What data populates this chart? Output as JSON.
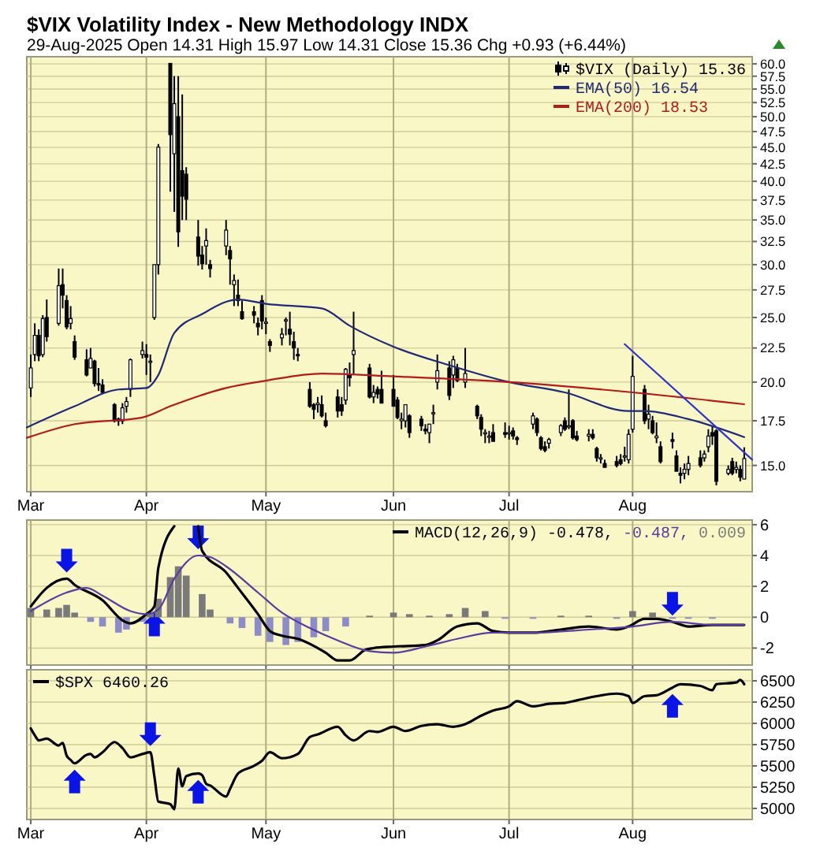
{
  "chart_data": [
    {
      "type": "candlestick",
      "title": "$VIX Volatility Index - New Methodology INDX",
      "subtitle": "29-Aug-2025   Open 14.31  High 15.97  Low 14.31  Close 15.36  Chg +0.93 (+6.44%)",
      "log": true,
      "grid": true,
      "legend": "top right",
      "xlim": [
        "2025-03-02",
        "2025-08-31"
      ],
      "xticks": [
        {
          "value": "2025-03-03",
          "label": "Mar"
        },
        {
          "value": "2025-04-01",
          "label": "Apr"
        },
        {
          "value": "2025-05-01",
          "label": "May"
        },
        {
          "value": "2025-06-02",
          "label": "Jun"
        },
        {
          "value": "2025-07-01",
          "label": "Jul"
        },
        {
          "value": "2025-08-01",
          "label": "Aug"
        }
      ],
      "ylim": [
        13.7,
        61.5
      ],
      "yticks": [
        {
          "value": 15,
          "label": "15.0"
        },
        {
          "value": 17.5,
          "label": "17.5"
        },
        {
          "value": 20,
          "label": "20.0"
        },
        {
          "value": 22.5,
          "label": "22.5"
        },
        {
          "value": 25,
          "label": "25.0"
        },
        {
          "value": 27.5,
          "label": "27.5"
        },
        {
          "value": 30,
          "label": "30.0"
        },
        {
          "value": 32.5,
          "label": "32.5"
        },
        {
          "value": 35,
          "label": "35.0"
        },
        {
          "value": 37.5,
          "label": "37.5"
        },
        {
          "value": 40,
          "label": "40.0"
        },
        {
          "value": 42.5,
          "label": "42.5"
        },
        {
          "value": 45,
          "label": "45.0"
        },
        {
          "value": 47.5,
          "label": "47.5"
        },
        {
          "value": 50,
          "label": "50.0"
        },
        {
          "value": 52.5,
          "label": "52.5"
        },
        {
          "value": 55,
          "label": "55.0"
        },
        {
          "value": 57.5,
          "label": "57.5"
        },
        {
          "value": 60,
          "label": "60.0"
        }
      ],
      "series": [
        {
          "name": "$VIX (Daily) 15.36",
          "color": "#000000",
          "x": [
            "2025-03-03",
            "2025-03-04",
            "2025-03-05",
            "2025-03-06",
            "2025-03-07",
            "2025-03-10",
            "2025-03-11",
            "2025-03-12",
            "2025-03-13",
            "2025-03-14",
            "2025-03-17",
            "2025-03-18",
            "2025-03-19",
            "2025-03-20",
            "2025-03-21",
            "2025-03-24",
            "2025-03-25",
            "2025-03-26",
            "2025-03-27",
            "2025-03-28",
            "2025-03-31",
            "2025-04-01",
            "2025-04-02",
            "2025-04-03",
            "2025-04-04",
            "2025-04-07",
            "2025-04-08",
            "2025-04-09",
            "2025-04-10",
            "2025-04-11",
            "2025-04-14",
            "2025-04-15",
            "2025-04-16",
            "2025-04-17",
            "2025-04-21",
            "2025-04-22",
            "2025-04-23",
            "2025-04-24",
            "2025-04-25",
            "2025-04-28",
            "2025-04-29",
            "2025-04-30",
            "2025-05-01",
            "2025-05-02",
            "2025-05-05",
            "2025-05-06",
            "2025-05-07",
            "2025-05-08",
            "2025-05-09",
            "2025-05-12",
            "2025-05-13",
            "2025-05-14",
            "2025-05-15",
            "2025-05-16",
            "2025-05-19",
            "2025-05-20",
            "2025-05-21",
            "2025-05-22",
            "2025-05-23",
            "2025-05-27",
            "2025-05-28",
            "2025-05-29",
            "2025-05-30",
            "2025-06-02",
            "2025-06-03",
            "2025-06-04",
            "2025-06-05",
            "2025-06-06",
            "2025-06-09",
            "2025-06-10",
            "2025-06-11",
            "2025-06-12",
            "2025-06-13",
            "2025-06-16",
            "2025-06-17",
            "2025-06-18",
            "2025-06-20",
            "2025-06-23",
            "2025-06-24",
            "2025-06-25",
            "2025-06-26",
            "2025-06-27",
            "2025-06-30",
            "2025-07-01",
            "2025-07-02",
            "2025-07-03",
            "2025-07-07",
            "2025-07-08",
            "2025-07-09",
            "2025-07-10",
            "2025-07-11",
            "2025-07-14",
            "2025-07-15",
            "2025-07-16",
            "2025-07-17",
            "2025-07-18",
            "2025-07-21",
            "2025-07-22",
            "2025-07-23",
            "2025-07-24",
            "2025-07-25",
            "2025-07-28",
            "2025-07-29",
            "2025-07-30",
            "2025-07-31",
            "2025-08-01",
            "2025-08-04",
            "2025-08-05",
            "2025-08-06",
            "2025-08-07",
            "2025-08-08",
            "2025-08-11",
            "2025-08-12",
            "2025-08-13",
            "2025-08-14",
            "2025-08-15",
            "2025-08-18",
            "2025-08-19",
            "2025-08-20",
            "2025-08-21",
            "2025-08-22",
            "2025-08-25",
            "2025-08-26",
            "2025-08-27",
            "2025-08-28",
            "2025-08-29"
          ],
          "ohlc": [
            [
              19.6,
              22.0,
              19.0,
              21.0
            ],
            [
              22.0,
              24.5,
              21.5,
              23.5
            ],
            [
              23.5,
              24.0,
              21.5,
              21.9
            ],
            [
              22.0,
              25.2,
              21.8,
              24.9
            ],
            [
              25.0,
              26.6,
              23.0,
              23.4
            ],
            [
              24.5,
              29.6,
              24.3,
              27.9
            ],
            [
              28.0,
              29.6,
              25.8,
              27.0
            ],
            [
              26.5,
              27.0,
              24.0,
              24.2
            ],
            [
              24.5,
              26.0,
              24.0,
              24.9
            ],
            [
              23.0,
              23.5,
              21.6,
              21.8
            ],
            [
              21.6,
              22.4,
              20.4,
              20.5
            ],
            [
              21.0,
              22.5,
              21.0,
              21.7
            ],
            [
              21.5,
              21.6,
              19.7,
              19.9
            ],
            [
              19.9,
              21.0,
              19.4,
              19.8
            ],
            [
              19.8,
              20.2,
              19.2,
              19.3
            ],
            [
              18.5,
              18.6,
              17.4,
              17.5
            ],
            [
              17.6,
              17.7,
              17.2,
              17.5
            ],
            [
              17.5,
              18.6,
              17.3,
              18.3
            ],
            [
              18.4,
              19.0,
              18.0,
              18.7
            ],
            [
              19.5,
              21.7,
              19.0,
              21.6
            ],
            [
              22.0,
              23.0,
              21.7,
              22.3
            ],
            [
              22.0,
              22.8,
              20.5,
              21.8
            ],
            [
              21.5,
              22.0,
              20.0,
              21.5
            ],
            [
              25.0,
              30.0,
              24.8,
              30.0
            ],
            [
              30.0,
              45.5,
              29.0,
              45.0
            ],
            [
              60.1,
              60.1,
              38.6,
              47.0
            ],
            [
              44.0,
              57.5,
              36.0,
              52.3
            ],
            [
              50.0,
              57.5,
              31.9,
              33.6
            ],
            [
              41.5,
              54.0,
              35.0,
              38.0
            ],
            [
              41.0,
              42.0,
              35.0,
              37.6
            ],
            [
              33.0,
              35.0,
              29.9,
              30.9
            ],
            [
              31.0,
              32.0,
              29.5,
              30.1
            ],
            [
              32.0,
              34.0,
              30.0,
              32.6
            ],
            [
              30.0,
              30.5,
              28.7,
              29.6
            ],
            [
              32.0,
              35.0,
              31.0,
              33.8
            ],
            [
              31.5,
              32.0,
              28.0,
              30.6
            ],
            [
              28.0,
              29.0,
              26.0,
              28.4
            ],
            [
              27.0,
              28.5,
              26.0,
              26.5
            ],
            [
              25.5,
              26.5,
              24.8,
              24.9
            ],
            [
              25.5,
              26.0,
              24.5,
              25.2
            ],
            [
              24.5,
              25.0,
              23.5,
              24.2
            ],
            [
              26.5,
              27.0,
              24.0,
              24.7
            ],
            [
              24.5,
              25.0,
              23.6,
              24.6
            ],
            [
              23.0,
              23.2,
              22.2,
              22.7
            ],
            [
              23.3,
              24.1,
              22.7,
              23.6
            ],
            [
              24.7,
              25.0,
              23.5,
              24.8
            ],
            [
              24.0,
              25.5,
              22.7,
              23.6
            ],
            [
              23.0,
              23.8,
              21.6,
              22.5
            ],
            [
              22.0,
              22.5,
              21.5,
              21.9
            ],
            [
              19.5,
              20.0,
              18.3,
              18.4
            ],
            [
              18.5,
              18.6,
              17.6,
              18.2
            ],
            [
              18.5,
              19.0,
              18.0,
              18.6
            ],
            [
              18.5,
              19.1,
              17.7,
              17.8
            ],
            [
              17.5,
              18.0,
              17.1,
              17.2
            ],
            [
              19.0,
              19.5,
              17.7,
              18.1
            ],
            [
              18.5,
              19.0,
              17.8,
              18.1
            ],
            [
              18.8,
              21.0,
              18.5,
              20.9
            ],
            [
              20.5,
              21.4,
              19.7,
              20.3
            ],
            [
              22.0,
              25.5,
              20.5,
              22.3
            ],
            [
              21.0,
              21.3,
              18.9,
              19.0
            ],
            [
              19.0,
              19.8,
              18.6,
              19.3
            ],
            [
              19.5,
              19.7,
              18.9,
              19.2
            ],
            [
              19.5,
              20.8,
              18.6,
              18.6
            ],
            [
              19.5,
              20.5,
              18.4,
              18.4
            ],
            [
              18.8,
              19.0,
              17.6,
              17.7
            ],
            [
              17.5,
              18.0,
              17.0,
              17.6
            ],
            [
              17.5,
              18.5,
              17.1,
              18.5
            ],
            [
              17.8,
              17.9,
              16.5,
              16.8
            ],
            [
              17.6,
              17.8,
              16.9,
              17.2
            ],
            [
              17.0,
              17.3,
              16.7,
              16.9
            ],
            [
              16.8,
              17.3,
              16.2,
              17.3
            ],
            [
              18.0,
              18.5,
              17.3,
              18.0
            ],
            [
              20.0,
              22.0,
              19.5,
              20.8
            ],
            [
              21.0,
              21.5,
              18.8,
              19.1
            ],
            [
              20.5,
              21.9,
              19.6,
              21.6
            ],
            [
              21.0,
              21.3,
              20.0,
              20.1
            ],
            [
              20.0,
              22.5,
              19.6,
              20.6
            ],
            [
              18.4,
              18.5,
              17.6,
              17.8
            ],
            [
              17.7,
              17.9,
              16.6,
              17.0
            ],
            [
              16.8,
              17.0,
              16.2,
              16.8
            ],
            [
              16.6,
              16.9,
              16.2,
              16.6
            ],
            [
              16.8,
              17.3,
              16.3,
              16.3
            ],
            [
              16.8,
              17.4,
              16.5,
              16.7
            ],
            [
              16.8,
              17.2,
              16.4,
              16.8
            ],
            [
              16.9,
              17.1,
              16.4,
              16.6
            ],
            [
              16.5,
              16.6,
              16.1,
              16.4
            ],
            [
              17.3,
              18.0,
              17.0,
              17.8
            ],
            [
              17.6,
              17.7,
              16.6,
              16.8
            ],
            [
              16.5,
              16.6,
              15.8,
              15.9
            ],
            [
              16.0,
              16.3,
              15.7,
              15.8
            ],
            [
              16.2,
              16.5,
              15.9,
              16.4
            ],
            [
              16.8,
              17.3,
              16.6,
              17.2
            ],
            [
              17.5,
              17.7,
              16.9,
              17.0
            ],
            [
              17.2,
              19.5,
              17.0,
              17.2
            ],
            [
              17.5,
              17.6,
              16.4,
              16.5
            ],
            [
              16.6,
              16.9,
              16.3,
              16.4
            ],
            [
              16.6,
              17.0,
              16.3,
              16.7
            ],
            [
              16.7,
              17.0,
              16.4,
              16.5
            ],
            [
              15.9,
              16.0,
              15.2,
              15.4
            ],
            [
              15.4,
              15.6,
              15.1,
              15.4
            ],
            [
              15.1,
              15.3,
              14.9,
              14.9
            ],
            [
              15.2,
              15.5,
              14.9,
              15.0
            ],
            [
              15.3,
              15.6,
              15.0,
              15.1
            ],
            [
              15.5,
              16.0,
              15.2,
              15.5
            ],
            [
              15.3,
              17.0,
              15.1,
              16.7
            ],
            [
              17.0,
              21.9,
              16.8,
              20.4
            ],
            [
              19.5,
              19.8,
              17.3,
              17.5
            ],
            [
              17.6,
              18.5,
              17.0,
              17.9
            ],
            [
              17.5,
              17.8,
              16.7,
              16.8
            ],
            [
              16.5,
              17.4,
              16.2,
              16.6
            ],
            [
              16.0,
              16.3,
              15.1,
              15.2
            ],
            [
              16.4,
              16.8,
              15.9,
              16.3
            ],
            [
              15.5,
              15.8,
              14.7,
              14.7
            ],
            [
              14.6,
              14.9,
              14.1,
              14.5
            ],
            [
              14.6,
              15.1,
              14.3,
              14.8
            ],
            [
              14.8,
              15.5,
              14.5,
              15.1
            ],
            [
              15.4,
              15.8,
              14.9,
              15.0
            ],
            [
              15.4,
              15.8,
              15.2,
              15.6
            ],
            [
              16.0,
              17.0,
              15.7,
              16.6
            ],
            [
              16.8,
              17.2,
              16.1,
              16.6
            ],
            [
              16.9,
              17.0,
              14.0,
              14.2
            ],
            [
              14.6,
              15.0,
              14.5,
              14.8
            ],
            [
              15.2,
              15.4,
              14.5,
              14.6
            ],
            [
              14.8,
              15.2,
              14.6,
              14.9
            ],
            [
              14.8,
              15.0,
              14.2,
              14.4
            ],
            [
              14.31,
              15.97,
              14.31,
              15.36
            ]
          ]
        },
        {
          "type": "line",
          "name": "EMA(50) 16.54",
          "color": "#1e2a78",
          "x": [
            "2025-03-02",
            "2025-03-14",
            "2025-03-25",
            "2025-04-01",
            "2025-04-04",
            "2025-04-08",
            "2025-04-15",
            "2025-04-24",
            "2025-05-01",
            "2025-05-15",
            "2025-05-22",
            "2025-06-02",
            "2025-06-16",
            "2025-07-01",
            "2025-07-15",
            "2025-07-31",
            "2025-08-04",
            "2025-08-15",
            "2025-08-29"
          ],
          "values": [
            17.1,
            18.4,
            19.5,
            19.6,
            20.5,
            23.7,
            25.3,
            26.6,
            26.2,
            25.8,
            24.3,
            22.6,
            21.2,
            20.0,
            19.3,
            18.1,
            18.1,
            17.6,
            16.54
          ]
        },
        {
          "type": "line",
          "name": "EMA(200) 18.53",
          "color": "#b01c1c",
          "x": [
            "2025-03-02",
            "2025-03-14",
            "2025-03-31",
            "2025-04-07",
            "2025-04-21",
            "2025-05-01",
            "2025-05-15",
            "2025-06-02",
            "2025-07-01",
            "2025-08-01",
            "2025-08-29"
          ],
          "values": [
            16.5,
            17.3,
            17.7,
            18.4,
            19.6,
            20.1,
            20.6,
            20.4,
            20.0,
            19.3,
            18.53
          ]
        },
        {
          "type": "line",
          "color": "#2f35c8",
          "x": [
            "2025-07-30",
            "2025-08-31"
          ],
          "values": [
            22.8,
            15.3
          ]
        }
      ]
    },
    {
      "type": "line",
      "grid": true,
      "legend": "top right",
      "tick_labels": "y",
      "xlim": [
        "2025-03-02",
        "2025-08-31"
      ],
      "xticks": [
        {
          "value": "2025-03-03",
          "label": null
        },
        {
          "value": "2025-04-01",
          "label": null
        },
        {
          "value": "2025-05-01",
          "label": null
        },
        {
          "value": "2025-06-02",
          "label": null
        },
        {
          "value": "2025-07-01",
          "label": null
        },
        {
          "value": "2025-08-01",
          "label": null
        }
      ],
      "ylim": [
        -3.1,
        6.3
      ],
      "yticks": [
        -2,
        0,
        2,
        4,
        6
      ],
      "series": [
        {
          "type": "bar",
          "name": "0.009",
          "color": "#7a7a7a",
          "x": [
            "2025-03-03",
            "2025-03-07",
            "2025-03-10",
            "2025-03-12",
            "2025-03-14",
            "2025-04-02",
            "2025-04-04",
            "2025-04-07",
            "2025-04-09",
            "2025-04-11",
            "2025-04-15",
            "2025-04-17",
            "2025-05-27",
            "2025-06-02",
            "2025-06-06",
            "2025-06-11",
            "2025-06-16",
            "2025-06-20",
            "2025-06-25",
            "2025-07-14",
            "2025-07-21",
            "2025-08-01",
            "2025-08-06"
          ],
          "values": [
            0.6,
            0.5,
            0.6,
            0.8,
            0.3,
            0.3,
            1.2,
            2.6,
            3.3,
            2.7,
            1.5,
            0.5,
            0.1,
            0.3,
            0.2,
            0.1,
            0.2,
            0.6,
            0.4,
            0.1,
            0.1,
            0.4,
            0.3
          ]
        },
        {
          "type": "bar",
          "color": "#8c8cc8",
          "x": [
            "2025-03-18",
            "2025-03-21",
            "2025-03-25",
            "2025-03-27",
            "2025-03-31",
            "2025-04-22",
            "2025-04-25",
            "2025-04-29",
            "2025-05-02",
            "2025-05-06",
            "2025-05-09",
            "2025-05-13",
            "2025-05-16",
            "2025-05-21",
            "2025-06-30",
            "2025-07-07",
            "2025-07-28",
            "2025-08-11",
            "2025-08-15",
            "2025-08-21"
          ],
          "values": [
            -0.3,
            -0.6,
            -1.0,
            -0.8,
            -0.3,
            -0.4,
            -0.7,
            -1.2,
            -1.6,
            -1.8,
            -1.6,
            -1.3,
            -0.9,
            -0.6,
            -0.1,
            -0.1,
            -0.1,
            -0.1,
            -0.1,
            -0.1
          ]
        },
        {
          "name": "MACD(12,26,9) -0.478,",
          "color": "#000000",
          "x": [
            "2025-03-03",
            "2025-03-07",
            "2025-03-12",
            "2025-03-14",
            "2025-03-21",
            "2025-03-26",
            "2025-03-28",
            "2025-04-01",
            "2025-04-03",
            "2025-04-04",
            "2025-04-08",
            "2025-04-09",
            "2025-04-11",
            "2025-04-14",
            "2025-04-15",
            "2025-04-21",
            "2025-04-24",
            "2025-04-29",
            "2025-05-02",
            "2025-05-05",
            "2025-05-09",
            "2025-05-16",
            "2025-05-19",
            "2025-05-22",
            "2025-05-26",
            "2025-05-28",
            "2025-06-02",
            "2025-06-10",
            "2025-06-13",
            "2025-06-18",
            "2025-06-23",
            "2025-06-27",
            "2025-07-01",
            "2025-07-07",
            "2025-07-14",
            "2025-07-21",
            "2025-07-28",
            "2025-07-31",
            "2025-08-04",
            "2025-08-07",
            "2025-08-11",
            "2025-08-15",
            "2025-08-21",
            "2025-08-29"
          ],
          "values": [
            0.7,
            1.9,
            2.5,
            2.1,
            1.1,
            -0.2,
            -0.4,
            0.2,
            0.7,
            3.2,
            5.9,
            null,
            null,
            5.9,
            4.3,
            2.9,
            1.9,
            0.2,
            -0.9,
            -1.2,
            -1.4,
            -2.3,
            -2.8,
            -2.8,
            -2.1,
            -2.0,
            -1.9,
            -1.8,
            -1.5,
            -0.6,
            -0.4,
            -0.9,
            -1.0,
            -1.0,
            -0.8,
            -0.6,
            -0.8,
            -0.6,
            -0.1,
            -0.1,
            -0.3,
            -0.6,
            -0.5,
            -0.5
          ]
        },
        {
          "name": "-0.487,",
          "color": "#5a3ca0",
          "x": [
            "2025-03-03",
            "2025-03-12",
            "2025-03-17",
            "2025-03-21",
            "2025-03-28",
            "2025-04-01",
            "2025-04-04",
            "2025-04-08",
            "2025-04-14",
            "2025-04-17",
            "2025-04-21",
            "2025-04-29",
            "2025-05-05",
            "2025-05-12",
            "2025-05-19",
            "2025-05-27",
            "2025-06-02",
            "2025-06-10",
            "2025-06-18",
            "2025-06-27",
            "2025-07-07",
            "2025-07-21",
            "2025-08-01",
            "2025-08-11",
            "2025-08-21",
            "2025-08-29"
          ],
          "values": [
            0.4,
            1.6,
            1.9,
            1.4,
            0.4,
            0.2,
            0.5,
            2.5,
            4.0,
            3.9,
            3.3,
            1.6,
            0.3,
            -0.7,
            -1.5,
            -2.2,
            -2.3,
            -1.9,
            -1.4,
            -1.0,
            -1.0,
            -0.8,
            -0.6,
            -0.3,
            -0.5,
            -0.5
          ]
        }
      ]
    },
    {
      "type": "line",
      "grid": true,
      "legend": "top left",
      "xlim": [
        "2025-03-02",
        "2025-08-31"
      ],
      "xticks": [
        {
          "value": "2025-03-03",
          "label": "Mar"
        },
        {
          "value": "2025-04-01",
          "label": "Apr"
        },
        {
          "value": "2025-05-01",
          "label": "May"
        },
        {
          "value": "2025-06-02",
          "label": "Jun"
        },
        {
          "value": "2025-07-01",
          "label": "Jul"
        },
        {
          "value": "2025-08-01",
          "label": "Aug"
        }
      ],
      "ylim": [
        4870,
        6630
      ],
      "yticks": [
        5000,
        5250,
        5500,
        5750,
        6000,
        6250,
        6500
      ],
      "series": [
        {
          "name": "$SPX 6460.26",
          "color": "#000000",
          "x": [
            "2025-03-03",
            "2025-03-04",
            "2025-03-05",
            "2025-03-07",
            "2025-03-10",
            "2025-03-11",
            "2025-03-12",
            "2025-03-13",
            "2025-03-14",
            "2025-03-17",
            "2025-03-18",
            "2025-03-19",
            "2025-03-21",
            "2025-03-24",
            "2025-03-26",
            "2025-03-28",
            "2025-03-31",
            "2025-04-02",
            "2025-04-03",
            "2025-04-04",
            "2025-04-07",
            "2025-04-08",
            "2025-04-09",
            "2025-04-10",
            "2025-04-11",
            "2025-04-14",
            "2025-04-15",
            "2025-04-16",
            "2025-04-17",
            "2025-04-21",
            "2025-04-22",
            "2025-04-24",
            "2025-04-28",
            "2025-04-30",
            "2025-05-02",
            "2025-05-05",
            "2025-05-09",
            "2025-05-12",
            "2025-05-14",
            "2025-05-19",
            "2025-05-21",
            "2025-05-23",
            "2025-05-27",
            "2025-05-29",
            "2025-06-02",
            "2025-06-05",
            "2025-06-09",
            "2025-06-13",
            "2025-06-17",
            "2025-06-20",
            "2025-06-24",
            "2025-06-27",
            "2025-07-01",
            "2025-07-03",
            "2025-07-07",
            "2025-07-11",
            "2025-07-15",
            "2025-07-18",
            "2025-07-23",
            "2025-07-28",
            "2025-07-31",
            "2025-08-01",
            "2025-08-04",
            "2025-08-07",
            "2025-08-11",
            "2025-08-13",
            "2025-08-18",
            "2025-08-21",
            "2025-08-22",
            "2025-08-27",
            "2025-08-28",
            "2025-08-29"
          ],
          "values": [
            5940,
            5860,
            5800,
            5820,
            5740,
            5770,
            5620,
            5570,
            5530,
            5630,
            5640,
            5600,
            5660,
            5780,
            5710,
            5600,
            5640,
            5660,
            5380,
            5080,
            5050,
            4990,
            5470,
            5260,
            5380,
            5410,
            5390,
            5290,
            5270,
            5140,
            5230,
            5410,
            5500,
            5560,
            5660,
            5590,
            5640,
            5840,
            5870,
            5960,
            5860,
            5800,
            5910,
            5900,
            5960,
            5910,
            5970,
            5990,
            5960,
            5990,
            6090,
            6150,
            6200,
            6260,
            6200,
            6230,
            6240,
            6270,
            6320,
            6350,
            6320,
            6240,
            6320,
            6330,
            6420,
            6460,
            6440,
            6390,
            6460,
            6480,
            6510,
            6460
          ]
        }
      ]
    }
  ]
}
